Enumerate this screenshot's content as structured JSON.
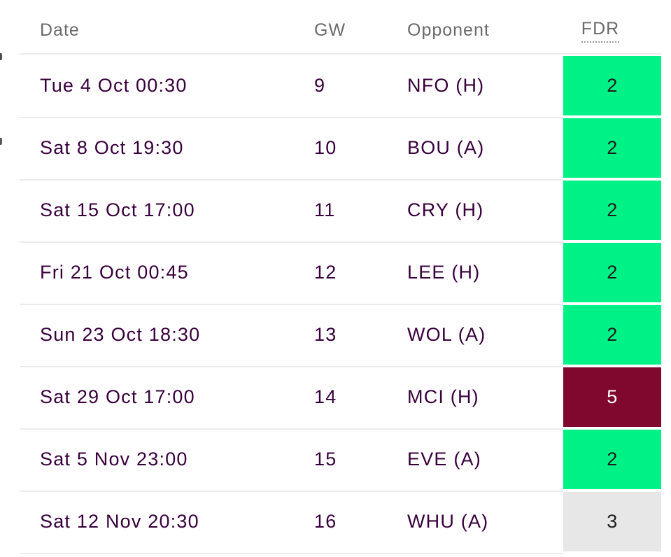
{
  "header": {
    "date": "Date",
    "gw": "GW",
    "opponent": "Opponent",
    "fdr": "FDR"
  },
  "fixtures": [
    {
      "date": "Tue 4 Oct 00:30",
      "gw": "9",
      "opponent": "NFO (H)",
      "fdr": "2"
    },
    {
      "date": "Sat 8 Oct 19:30",
      "gw": "10",
      "opponent": "BOU (A)",
      "fdr": "2"
    },
    {
      "date": "Sat 15 Oct 17:00",
      "gw": "11",
      "opponent": "CRY (H)",
      "fdr": "2"
    },
    {
      "date": "Fri 21 Oct 00:45",
      "gw": "12",
      "opponent": "LEE (H)",
      "fdr": "2"
    },
    {
      "date": "Sun 23 Oct 18:30",
      "gw": "13",
      "opponent": "WOL (A)",
      "fdr": "2"
    },
    {
      "date": "Sat 29 Oct 17:00",
      "gw": "14",
      "opponent": "MCI (H)",
      "fdr": "5"
    },
    {
      "date": "Sat 5 Nov 23:00",
      "gw": "15",
      "opponent": "EVE (A)",
      "fdr": "2"
    },
    {
      "date": "Sat 12 Nov 20:30",
      "gw": "16",
      "opponent": "WHU (A)",
      "fdr": "3"
    }
  ],
  "colors": {
    "fdr2": "#00f286",
    "fdr3": "#e7e7e7",
    "fdr5": "#80072d",
    "fdr_text_dark": "#1e1e1e",
    "fdr_text_light": "#ffffff",
    "row_text": "#37003c",
    "header_text": "#6a6a6a"
  }
}
